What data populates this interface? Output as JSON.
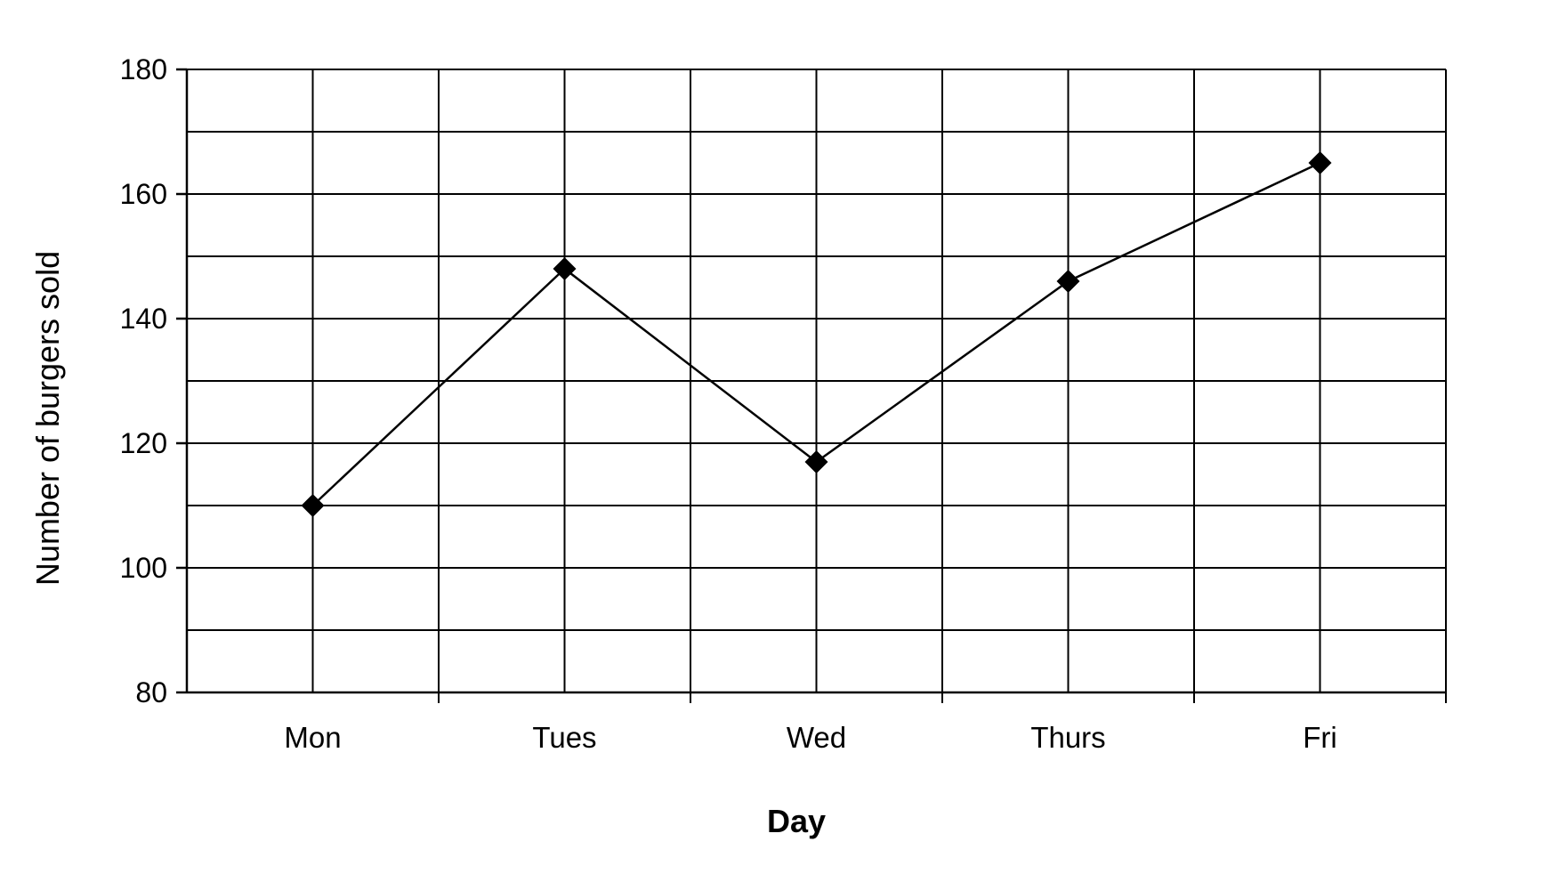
{
  "chart_data": {
    "type": "line",
    "xlabel": "Day",
    "ylabel": "Number of burgers sold",
    "categories": [
      "Mon",
      "Tues",
      "Wed",
      "Thurs",
      "Fri"
    ],
    "series": [
      {
        "values": [
          110,
          148,
          117,
          146,
          165
        ],
        "marker": "diamond",
        "color": "#000000"
      }
    ],
    "ylim": [
      80,
      180
    ],
    "yticks": [
      80,
      100,
      120,
      140,
      160,
      180
    ],
    "grid": true,
    "legend": "none"
  }
}
